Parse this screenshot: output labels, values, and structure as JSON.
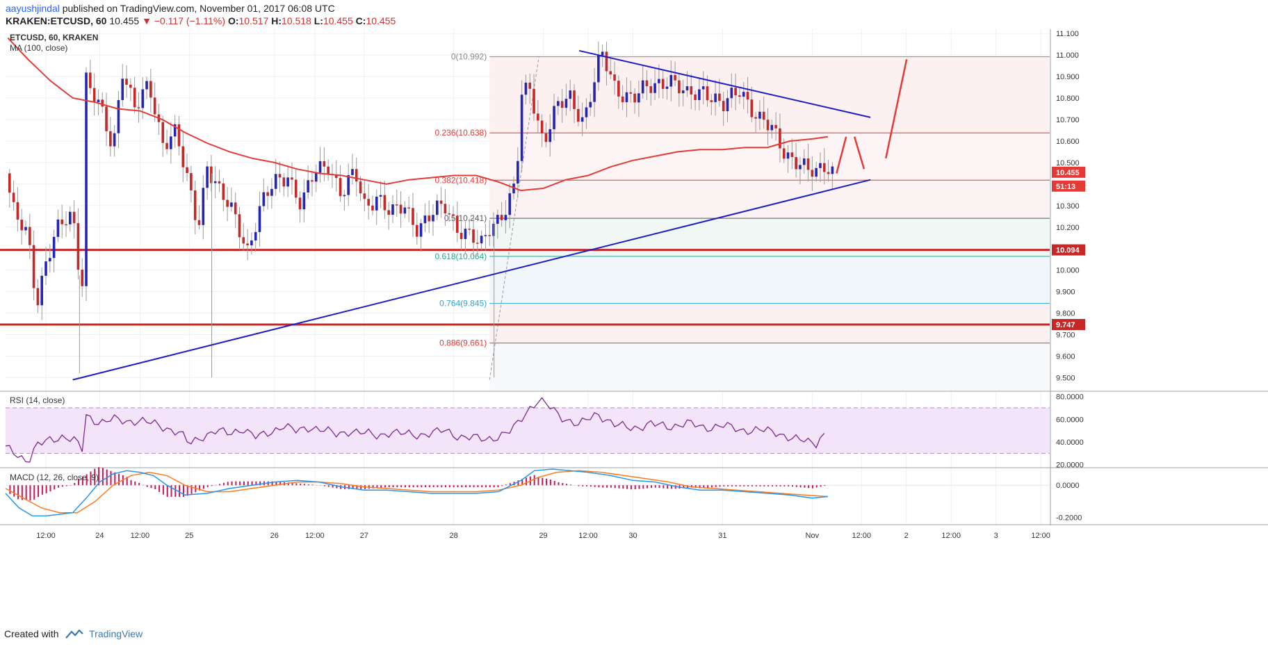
{
  "header": {
    "author": "aayushjindal",
    "published_text": " published on TradingView.com, November 01, 2017 06:08 UTC",
    "symbol": "KRAKEN:ETCUSD, 60",
    "last": "10.455",
    "change": "▼ −0.117 (−1.11%)",
    "open_label": "O:",
    "open": "10.517",
    "high_label": "H:",
    "high": "10.518",
    "low_label": "L:",
    "low": "10.455",
    "close_label": "C:",
    "close": "10.455"
  },
  "footer": {
    "created_with": "Created with",
    "brand": "TradingView"
  },
  "colors": {
    "up": "#2424b8",
    "down": "#c62828",
    "ma": "#e53935",
    "trend": "#1c1cc8",
    "level": "#c62828",
    "rsi": "#7b2a8f",
    "rsi_band": "#f3e4fa",
    "macd": "#2196f3",
    "signal": "#ff7a1a",
    "hist": "#c2185b"
  },
  "chart_data": [
    {
      "type": "candlestick",
      "title": "ETCUSD, 60, KRAKEN",
      "indicator_label": "MA (100, close)",
      "ylim": [
        9.44,
        11.12
      ],
      "y_ticks": [
        "11.100",
        "11.000",
        "10.900",
        "10.800",
        "10.700",
        "10.600",
        "10.500",
        "10.400",
        "10.300",
        "10.200",
        "10.100",
        "10.000",
        "9.900",
        "9.800",
        "9.700",
        "9.600",
        "9.500"
      ],
      "x_ticks": [
        {
          "label": "12:00",
          "pos": 0.9
        },
        {
          "label": "24",
          "pos": 2.1
        },
        {
          "label": "12:00",
          "pos": 3.0
        },
        {
          "label": "25",
          "pos": 4.1
        },
        {
          "label": "26",
          "pos": 6.0
        },
        {
          "label": "12:00",
          "pos": 6.9
        },
        {
          "label": "27",
          "pos": 8.0
        },
        {
          "label": "28",
          "pos": 10.0
        },
        {
          "label": "29",
          "pos": 12.0
        },
        {
          "label": "12:00",
          "pos": 13.0
        },
        {
          "label": "30",
          "pos": 14.0
        },
        {
          "label": "31",
          "pos": 16.0
        },
        {
          "label": "Nov",
          "pos": 18.0
        },
        {
          "label": "12:00",
          "pos": 19.1
        },
        {
          "label": "2",
          "pos": 20.1
        },
        {
          "label": "12:00",
          "pos": 21.1
        },
        {
          "label": "3",
          "pos": 22.1
        },
        {
          "label": "12:00",
          "pos": 23.1
        }
      ],
      "x_range": [
        0,
        23.3
      ],
      "anchors": [
        [
          0,
          10.45
        ],
        [
          0.2,
          10.25
        ],
        [
          0.5,
          10.15
        ],
        [
          0.7,
          9.85
        ],
        [
          0.9,
          10.05
        ],
        [
          1.2,
          10.2
        ],
        [
          1.5,
          10.25
        ],
        [
          1.6,
          10.1
        ],
        [
          1.7,
          9.85
        ],
        [
          1.8,
          10.9
        ],
        [
          2.1,
          10.75
        ],
        [
          2.4,
          10.55
        ],
        [
          2.6,
          10.95
        ],
        [
          2.9,
          10.75
        ],
        [
          3.2,
          10.85
        ],
        [
          3.5,
          10.6
        ],
        [
          3.8,
          10.65
        ],
        [
          4.0,
          10.45
        ],
        [
          4.3,
          10.2
        ],
        [
          4.5,
          10.5
        ],
        [
          4.8,
          10.35
        ],
        [
          5.1,
          10.25
        ],
        [
          5.4,
          10.1
        ],
        [
          5.7,
          10.3
        ],
        [
          6.0,
          10.4
        ],
        [
          6.3,
          10.45
        ],
        [
          6.6,
          10.3
        ],
        [
          6.9,
          10.45
        ],
        [
          7.2,
          10.5
        ],
        [
          7.5,
          10.35
        ],
        [
          7.8,
          10.45
        ],
        [
          8.0,
          10.3
        ],
        [
          8.3,
          10.35
        ],
        [
          8.6,
          10.25
        ],
        [
          8.9,
          10.3
        ],
        [
          9.2,
          10.2
        ],
        [
          9.5,
          10.25
        ],
        [
          9.8,
          10.3
        ],
        [
          10.1,
          10.2
        ],
        [
          10.4,
          10.15
        ],
        [
          10.6,
          10.1
        ],
        [
          10.8,
          10.2
        ],
        [
          11.0,
          10.25
        ],
        [
          11.2,
          10.3
        ],
        [
          11.4,
          10.4
        ],
        [
          11.5,
          10.8
        ],
        [
          11.7,
          10.85
        ],
        [
          12.0,
          10.6
        ],
        [
          12.3,
          10.75
        ],
        [
          12.6,
          10.8
        ],
        [
          12.9,
          10.7
        ],
        [
          13.3,
          11.0
        ],
        [
          13.6,
          10.85
        ],
        [
          14.0,
          10.8
        ],
        [
          14.4,
          10.85
        ],
        [
          14.8,
          10.9
        ],
        [
          15.2,
          10.8
        ],
        [
          15.6,
          10.85
        ],
        [
          16.0,
          10.75
        ],
        [
          16.4,
          10.85
        ],
        [
          16.8,
          10.7
        ],
        [
          17.1,
          10.65
        ],
        [
          17.4,
          10.55
        ],
        [
          17.7,
          10.5
        ],
        [
          17.9,
          10.45
        ],
        [
          18.1,
          10.45
        ],
        [
          18.3,
          10.5
        ],
        [
          18.5,
          10.46
        ]
      ],
      "candle_step": 0.09,
      "lows": [
        {
          "x": 1.65,
          "y": 9.52
        },
        {
          "x": 4.6,
          "y": 9.5
        },
        {
          "x": 10.9,
          "y": 9.5
        }
      ],
      "ma_points": [
        [
          0.05,
          11.08
        ],
        [
          0.5,
          10.98
        ],
        [
          1.0,
          10.88
        ],
        [
          1.5,
          10.8
        ],
        [
          2.0,
          10.78
        ],
        [
          2.5,
          10.75
        ],
        [
          3.0,
          10.74
        ],
        [
          3.5,
          10.7
        ],
        [
          4.0,
          10.64
        ],
        [
          4.5,
          10.59
        ],
        [
          5.0,
          10.55
        ],
        [
          5.5,
          10.52
        ],
        [
          6.0,
          10.5
        ],
        [
          6.5,
          10.47
        ],
        [
          7.0,
          10.45
        ],
        [
          7.5,
          10.44
        ],
        [
          8.0,
          10.42
        ],
        [
          8.5,
          10.4
        ],
        [
          9.0,
          10.42
        ],
        [
          9.5,
          10.43
        ],
        [
          10.0,
          10.44
        ],
        [
          10.5,
          10.44
        ],
        [
          11.0,
          10.41
        ],
        [
          11.5,
          10.37
        ],
        [
          12.0,
          10.38
        ],
        [
          12.5,
          10.42
        ],
        [
          13.0,
          10.44
        ],
        [
          13.5,
          10.48
        ],
        [
          14.0,
          10.51
        ],
        [
          14.5,
          10.53
        ],
        [
          15.0,
          10.55
        ],
        [
          15.5,
          10.56
        ],
        [
          16.0,
          10.56
        ],
        [
          16.5,
          10.57
        ],
        [
          17.0,
          10.57
        ],
        [
          17.5,
          10.6
        ],
        [
          18.0,
          10.61
        ],
        [
          18.35,
          10.62
        ]
      ],
      "trendlines": [
        {
          "x1": 1.5,
          "y1": 9.49,
          "x2": 19.3,
          "y2": 10.42
        },
        {
          "x1": 12.8,
          "y1": 11.02,
          "x2": 19.3,
          "y2": 10.71
        }
      ],
      "projection_path": [
        [
          18.45,
          10.45
        ],
        [
          18.85,
          10.62
        ],
        [
          19.25,
          10.47
        ],
        [
          19.55,
          10.52
        ],
        [
          20.2,
          10.98
        ]
      ],
      "fib_origin": {
        "x1": 10.8,
        "y1": 9.49,
        "x2": 11.9,
        "y2": 10.99
      },
      "fib_x_start": 10.8,
      "fib_levels": [
        {
          "label": "0(10.992)",
          "value": 10.992,
          "color": "#888888"
        },
        {
          "label": "0.236(10.638)",
          "value": 10.638,
          "color": "#e53935"
        },
        {
          "label": "0.382(10.418)",
          "value": 10.418,
          "color": "#e53935"
        },
        {
          "label": "0.5(10.241)",
          "value": 10.241,
          "color": "#555555"
        },
        {
          "label": "0.618(10.064)",
          "value": 10.064,
          "color": "#26a69a"
        },
        {
          "label": "0.764(9.845)",
          "value": 9.845,
          "color": "#29a4d9"
        },
        {
          "label": "0.886(9.661)",
          "value": 9.661,
          "color": "#e53935"
        }
      ],
      "horizontal_levels": [
        {
          "label": "10.094",
          "value": 10.094
        },
        {
          "label": "9.747",
          "value": 9.747
        }
      ],
      "price_tags": [
        {
          "label": "10.455",
          "value": 10.455
        },
        {
          "label": "51:13",
          "value": 10.41
        }
      ]
    },
    {
      "type": "line",
      "title": "RSI (14, close)",
      "ylim": [
        18,
        84
      ],
      "y_ticks": [
        {
          "label": "80.0000",
          "value": 80
        },
        {
          "label": "60.0000",
          "value": 60
        },
        {
          "label": "40.0000",
          "value": 40
        },
        {
          "label": "20.0000",
          "value": 20
        }
      ],
      "bands": [
        30,
        70
      ],
      "anchors": [
        [
          0,
          35
        ],
        [
          0.3,
          28
        ],
        [
          0.5,
          23
        ],
        [
          0.7,
          37
        ],
        [
          1.0,
          42
        ],
        [
          1.3,
          45
        ],
        [
          1.6,
          40
        ],
        [
          1.7,
          30
        ],
        [
          1.8,
          63
        ],
        [
          2.1,
          57
        ],
        [
          2.4,
          60
        ],
        [
          2.7,
          58
        ],
        [
          3.0,
          59
        ],
        [
          3.3,
          56
        ],
        [
          3.6,
          52
        ],
        [
          3.9,
          48
        ],
        [
          4.1,
          38
        ],
        [
          4.4,
          45
        ],
        [
          4.7,
          50
        ],
        [
          5.0,
          47
        ],
        [
          5.3,
          52
        ],
        [
          5.6,
          44
        ],
        [
          5.9,
          48
        ],
        [
          6.2,
          55
        ],
        [
          6.5,
          49
        ],
        [
          6.8,
          53
        ],
        [
          7.1,
          51
        ],
        [
          7.4,
          46
        ],
        [
          7.7,
          50
        ],
        [
          8.0,
          48
        ],
        [
          8.3,
          45
        ],
        [
          8.6,
          49
        ],
        [
          8.9,
          47
        ],
        [
          9.2,
          46
        ],
        [
          9.5,
          48
        ],
        [
          9.8,
          50
        ],
        [
          10.1,
          45
        ],
        [
          10.4,
          44
        ],
        [
          10.7,
          42
        ],
        [
          11.0,
          45
        ],
        [
          11.3,
          50
        ],
        [
          11.5,
          60
        ],
        [
          11.7,
          70
        ],
        [
          11.9,
          77
        ],
        [
          12.1,
          72
        ],
        [
          12.4,
          62
        ],
        [
          12.8,
          55
        ],
        [
          13.2,
          65
        ],
        [
          13.6,
          55
        ],
        [
          14.0,
          52
        ],
        [
          14.4,
          56
        ],
        [
          14.8,
          53
        ],
        [
          15.2,
          57
        ],
        [
          15.6,
          52
        ],
        [
          16.0,
          55
        ],
        [
          16.4,
          50
        ],
        [
          16.8,
          51
        ],
        [
          17.2,
          48
        ],
        [
          17.6,
          43
        ],
        [
          17.9,
          40
        ],
        [
          18.1,
          39
        ],
        [
          18.25,
          48
        ],
        [
          18.35,
          42
        ]
      ]
    },
    {
      "type": "line",
      "title": "MACD (12, 26, close, 9)",
      "ylim": [
        -0.24,
        0.1
      ],
      "y_ticks": [
        {
          "label": "0.0000",
          "value": 0
        },
        {
          "label": "-0.2000",
          "value": -0.2
        }
      ],
      "macd_anchors": [
        [
          0,
          -0.05
        ],
        [
          0.3,
          -0.14
        ],
        [
          0.6,
          -0.19
        ],
        [
          0.9,
          -0.19
        ],
        [
          1.2,
          -0.18
        ],
        [
          1.5,
          -0.17
        ],
        [
          1.8,
          -0.08
        ],
        [
          2.1,
          0.02
        ],
        [
          2.4,
          0.07
        ],
        [
          2.7,
          0.09
        ],
        [
          3.0,
          0.08
        ],
        [
          3.3,
          0.06
        ],
        [
          3.6,
          0.0
        ],
        [
          4.0,
          -0.06
        ],
        [
          4.5,
          -0.05
        ],
        [
          5.0,
          -0.02
        ],
        [
          5.5,
          0.0
        ],
        [
          6.0,
          0.02
        ],
        [
          6.5,
          0.03
        ],
        [
          7.0,
          0.02
        ],
        [
          7.5,
          -0.01
        ],
        [
          8.0,
          -0.03
        ],
        [
          8.5,
          -0.03
        ],
        [
          9.0,
          -0.04
        ],
        [
          9.5,
          -0.05
        ],
        [
          10.0,
          -0.05
        ],
        [
          10.5,
          -0.05
        ],
        [
          11.0,
          -0.04
        ],
        [
          11.5,
          0.03
        ],
        [
          11.8,
          0.09
        ],
        [
          12.2,
          0.1
        ],
        [
          12.6,
          0.09
        ],
        [
          13.0,
          0.08
        ],
        [
          13.5,
          0.06
        ],
        [
          14.0,
          0.03
        ],
        [
          14.5,
          0.02
        ],
        [
          15.0,
          -0.01
        ],
        [
          15.5,
          -0.03
        ],
        [
          16.0,
          -0.03
        ],
        [
          16.5,
          -0.04
        ],
        [
          17.0,
          -0.05
        ],
        [
          17.5,
          -0.06
        ],
        [
          18.0,
          -0.08
        ],
        [
          18.35,
          -0.07
        ]
      ],
      "signal_anchors": [
        [
          0,
          -0.02
        ],
        [
          0.4,
          -0.08
        ],
        [
          0.8,
          -0.14
        ],
        [
          1.2,
          -0.17
        ],
        [
          1.6,
          -0.17
        ],
        [
          2.0,
          -0.1
        ],
        [
          2.4,
          0.0
        ],
        [
          2.8,
          0.06
        ],
        [
          3.2,
          0.08
        ],
        [
          3.6,
          0.06
        ],
        [
          4.0,
          0.0
        ],
        [
          4.5,
          -0.04
        ],
        [
          5.0,
          -0.04
        ],
        [
          5.5,
          -0.02
        ],
        [
          6.0,
          0.0
        ],
        [
          6.5,
          0.02
        ],
        [
          7.0,
          0.02
        ],
        [
          7.5,
          0.01
        ],
        [
          8.0,
          -0.01
        ],
        [
          8.5,
          -0.02
        ],
        [
          9.0,
          -0.03
        ],
        [
          9.5,
          -0.04
        ],
        [
          10.0,
          -0.04
        ],
        [
          10.5,
          -0.04
        ],
        [
          11.0,
          -0.03
        ],
        [
          11.5,
          0.0
        ],
        [
          11.9,
          0.05
        ],
        [
          12.3,
          0.08
        ],
        [
          12.8,
          0.09
        ],
        [
          13.3,
          0.08
        ],
        [
          13.8,
          0.06
        ],
        [
          14.3,
          0.04
        ],
        [
          14.8,
          0.02
        ],
        [
          15.3,
          -0.01
        ],
        [
          15.8,
          -0.02
        ],
        [
          16.3,
          -0.03
        ],
        [
          16.8,
          -0.04
        ],
        [
          17.3,
          -0.05
        ],
        [
          17.8,
          -0.06
        ],
        [
          18.35,
          -0.07
        ]
      ]
    }
  ]
}
